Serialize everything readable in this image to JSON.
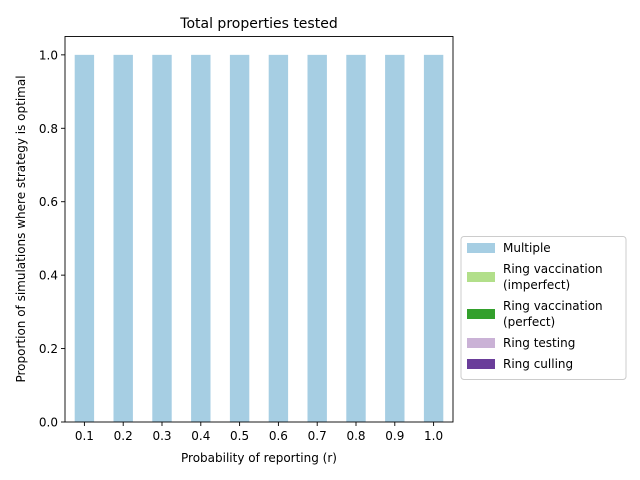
{
  "chart_data": {
    "type": "bar",
    "stacked": true,
    "title": "Total properties tested",
    "xlabel": "Probability of reporting (r)",
    "ylabel": "Proportion of simulations where strategy is optimal",
    "categories": [
      "0.1",
      "0.2",
      "0.3",
      "0.4",
      "0.5",
      "0.6",
      "0.7",
      "0.8",
      "0.9",
      "1.0"
    ],
    "ylim": [
      0,
      1.05
    ],
    "yticks": [
      "0.0",
      "0.2",
      "0.4",
      "0.6",
      "0.8",
      "1.0"
    ],
    "grid": false,
    "legend_position": "center-right-outside",
    "series": [
      {
        "name": "Multiple",
        "color": "#a6cee3",
        "values": [
          1,
          1,
          1,
          1,
          1,
          1,
          1,
          1,
          1,
          1
        ]
      },
      {
        "name": "Ring vaccination\n(imperfect)",
        "color": "#b2df8a",
        "values": [
          0,
          0,
          0,
          0,
          0,
          0,
          0,
          0,
          0,
          0
        ]
      },
      {
        "name": "Ring vaccination\n(perfect)",
        "color": "#33a02c",
        "values": [
          0,
          0,
          0,
          0,
          0,
          0,
          0,
          0,
          0,
          0
        ]
      },
      {
        "name": "Ring testing",
        "color": "#cab2d6",
        "values": [
          0,
          0,
          0,
          0,
          0,
          0,
          0,
          0,
          0,
          0
        ]
      },
      {
        "name": "Ring culling",
        "color": "#6a3d9a",
        "values": [
          0,
          0,
          0,
          0,
          0,
          0,
          0,
          0,
          0,
          0
        ]
      }
    ]
  }
}
